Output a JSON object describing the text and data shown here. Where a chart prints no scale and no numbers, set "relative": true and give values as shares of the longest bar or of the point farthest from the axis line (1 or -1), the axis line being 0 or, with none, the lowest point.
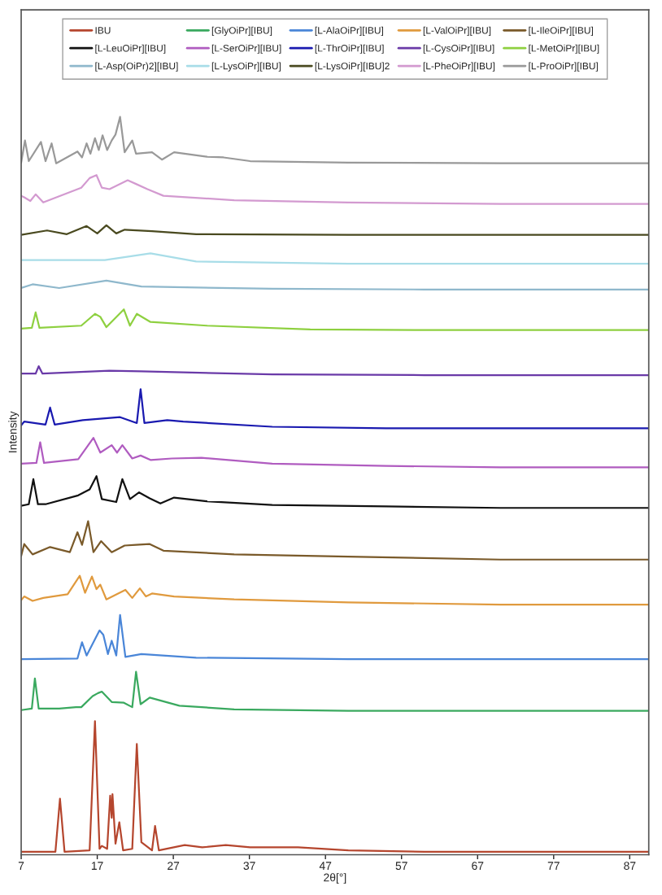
{
  "chart_data": {
    "type": "line",
    "relative": true,
    "xlabel": "2θ[°]",
    "ylabel": "Intensity",
    "xlim": [
      7,
      89.5
    ],
    "xticks": [
      7,
      17,
      27,
      37,
      47,
      57,
      67,
      77,
      87
    ],
    "tick_labels": "x",
    "legend": "top",
    "grid": false,
    "marker": "none",
    "line_style": "solid",
    "series": [
      {
        "name": "IBU",
        "color": "#b5462e",
        "x": [
          7,
          11.5,
          12.1,
          12.7,
          16.0,
          16.7,
          17.3,
          17.6,
          18.3,
          18.7,
          18.9,
          19.0,
          19.4,
          19.9,
          20.4,
          21.6,
          22.2,
          22.8,
          24.2,
          24.6,
          25.1,
          28.5,
          30.8,
          33.9,
          37.1,
          43.4,
          50,
          60,
          70,
          80,
          89.5
        ],
        "values": [
          0.004,
          0.004,
          0.076,
          0.004,
          0.006,
          0.181,
          0.008,
          0.012,
          0.008,
          0.08,
          0.05,
          0.082,
          0.015,
          0.044,
          0.006,
          0.008,
          0.15,
          0.017,
          0.006,
          0.039,
          0.006,
          0.013,
          0.01,
          0.013,
          0.01,
          0.01,
          0.006,
          0.004,
          0.004,
          0.004,
          0.004
        ]
      },
      {
        "name": "[GlyOiPr][IBU]",
        "color": "#3aa95f",
        "x": [
          7,
          8.4,
          8.8,
          9.3,
          12.0,
          14.2,
          14.9,
          16.4,
          17.1,
          17.6,
          18.9,
          20.5,
          21.6,
          22.1,
          22.7,
          23.9,
          27.8,
          35,
          50,
          70,
          89.5
        ],
        "values": [
          0.196,
          0.198,
          0.239,
          0.198,
          0.198,
          0.2,
          0.2,
          0.215,
          0.219,
          0.221,
          0.207,
          0.206,
          0.2,
          0.248,
          0.204,
          0.213,
          0.202,
          0.197,
          0.195,
          0.195,
          0.195
        ]
      },
      {
        "name": "[L-AlaOiPr][IBU]",
        "color": "#4a86d8",
        "x": [
          7,
          14.4,
          15.0,
          15.6,
          17.3,
          17.8,
          18.4,
          18.9,
          19.5,
          20.0,
          20.7,
          22.8,
          30,
          50,
          70,
          89.5
        ],
        "values": [
          0.265,
          0.266,
          0.288,
          0.27,
          0.304,
          0.298,
          0.272,
          0.29,
          0.27,
          0.325,
          0.268,
          0.272,
          0.267,
          0.265,
          0.265,
          0.265
        ]
      },
      {
        "name": "[L-ValOiPr][IBU]",
        "color": "#e09a3e",
        "x": [
          7,
          7.4,
          8.5,
          9.9,
          13.1,
          14.7,
          15.4,
          16.3,
          16.9,
          17.4,
          18.2,
          20.7,
          21.6,
          22.6,
          23.4,
          24.2,
          27.1,
          35,
          50,
          70,
          89.5
        ],
        "values": [
          0.345,
          0.35,
          0.344,
          0.348,
          0.353,
          0.378,
          0.355,
          0.377,
          0.36,
          0.366,
          0.346,
          0.359,
          0.348,
          0.361,
          0.35,
          0.354,
          0.35,
          0.346,
          0.342,
          0.339,
          0.339
        ]
      },
      {
        "name": "[L-IleOiPr][IBU]",
        "color": "#7a5a2a",
        "x": [
          7,
          7.4,
          8.5,
          10.8,
          13.4,
          14.4,
          15.0,
          15.8,
          16.5,
          17.5,
          18.9,
          20.6,
          22.1,
          23.9,
          25.7,
          35,
          50,
          70,
          89.5
        ],
        "values": [
          0.405,
          0.421,
          0.407,
          0.417,
          0.41,
          0.437,
          0.42,
          0.452,
          0.41,
          0.425,
          0.41,
          0.419,
          0.42,
          0.421,
          0.412,
          0.407,
          0.404,
          0.4,
          0.4
        ]
      },
      {
        "name": "[L-LeuOiPr][IBU]",
        "color": "#111111",
        "x": [
          7,
          8.0,
          8.6,
          9.2,
          10.2,
          14.5,
          16.0,
          16.9,
          17.6,
          19.5,
          20.3,
          21.3,
          22.5,
          23.9,
          25.3,
          27.1,
          31.4,
          40,
          55,
          70,
          89.5
        ],
        "values": [
          0.473,
          0.475,
          0.509,
          0.475,
          0.475,
          0.487,
          0.495,
          0.513,
          0.482,
          0.478,
          0.509,
          0.482,
          0.491,
          0.483,
          0.476,
          0.484,
          0.479,
          0.474,
          0.472,
          0.47,
          0.47
        ]
      },
      {
        "name": "[L-SerOiPr][IBU]",
        "color": "#b05cc0",
        "x": [
          7,
          9.0,
          9.5,
          10.0,
          14.5,
          16.5,
          17.4,
          18.9,
          19.6,
          20.3,
          21.6,
          22.7,
          24.0,
          26.8,
          30.7,
          40,
          55,
          70,
          89.5
        ],
        "values": [
          0.53,
          0.531,
          0.559,
          0.531,
          0.536,
          0.565,
          0.545,
          0.555,
          0.545,
          0.555,
          0.537,
          0.541,
          0.535,
          0.537,
          0.538,
          0.53,
          0.527,
          0.525,
          0.525
        ]
      },
      {
        "name": "[L-ThrOiPr][IBU]",
        "color": "#1a1ab0",
        "x": [
          7,
          7.4,
          10.2,
          10.8,
          11.4,
          15.1,
          17.4,
          20.0,
          22.2,
          22.7,
          23.2,
          26.2,
          28.3,
          40,
          55,
          70,
          89.5
        ],
        "values": [
          0.582,
          0.587,
          0.583,
          0.606,
          0.583,
          0.589,
          0.591,
          0.593,
          0.585,
          0.631,
          0.585,
          0.589,
          0.587,
          0.58,
          0.578,
          0.578,
          0.578
        ]
      },
      {
        "name": "[L-CysOiPr][IBU]",
        "color": "#6a3aa8",
        "x": [
          7,
          8.9,
          9.3,
          9.8,
          18.6,
          22.8,
          40,
          60,
          89.5
        ],
        "values": [
          0.652,
          0.652,
          0.662,
          0.652,
          0.656,
          0.655,
          0.651,
          0.65,
          0.65
        ]
      },
      {
        "name": "[L-MetOiPr][IBU]",
        "color": "#8ed040",
        "x": [
          7,
          8.4,
          8.9,
          9.4,
          14.9,
          16.7,
          17.4,
          18.2,
          20.5,
          21.3,
          22.2,
          24.0,
          31.4,
          45,
          60,
          89.5
        ],
        "values": [
          0.713,
          0.714,
          0.735,
          0.714,
          0.717,
          0.733,
          0.729,
          0.715,
          0.739,
          0.717,
          0.733,
          0.722,
          0.717,
          0.712,
          0.711,
          0.711
        ]
      },
      {
        "name": "[L-Asp(OiPr)2][IBU]",
        "color": "#8fb8cc",
        "x": [
          7,
          8.5,
          12,
          18.2,
          22.8,
          40,
          60,
          89.5
        ],
        "values": [
          0.768,
          0.773,
          0.768,
          0.778,
          0.77,
          0.767,
          0.766,
          0.766
        ]
      },
      {
        "name": "[L-LysOiPr][IBU]",
        "color": "#a8dde8",
        "x": [
          7,
          18,
          24.0,
          30,
          50,
          89.5
        ],
        "values": [
          0.806,
          0.806,
          0.815,
          0.804,
          0.801,
          0.801
        ]
      },
      {
        "name": "[L-LysOiPr][IBU]2",
        "color": "#4a4a20",
        "x": [
          7,
          10.4,
          13,
          15.6,
          17,
          18.2,
          19.5,
          20.6,
          24.2,
          30,
          50,
          89.5
        ],
        "values": [
          0.84,
          0.846,
          0.841,
          0.852,
          0.842,
          0.853,
          0.842,
          0.847,
          0.845,
          0.841,
          0.84,
          0.84
        ]
      },
      {
        "name": "[L-PheOiPr][IBU]",
        "color": "#d39ad0",
        "x": [
          7,
          7.4,
          8.2,
          8.9,
          9.9,
          14.9,
          16.0,
          16.9,
          17.6,
          18.6,
          21.0,
          22.1,
          23.6,
          25.7,
          35,
          50,
          70,
          89.5
        ],
        "values": [
          0.893,
          0.891,
          0.886,
          0.895,
          0.884,
          0.904,
          0.917,
          0.921,
          0.904,
          0.902,
          0.914,
          0.909,
          0.902,
          0.893,
          0.887,
          0.884,
          0.882,
          0.882
        ]
      },
      {
        "name": "[L-ProOiPr][IBU]",
        "color": "#999999",
        "x": [
          7,
          7.5,
          8.0,
          9.6,
          10.2,
          11.0,
          11.6,
          14.4,
          15.0,
          15.6,
          16.1,
          16.7,
          17.2,
          17.7,
          18.3,
          18.9,
          19.4,
          20.0,
          20.6,
          21.6,
          22.1,
          24.2,
          25.5,
          27.1,
          31.4,
          33.6,
          37.1,
          50,
          70,
          89.5
        ],
        "values": [
          0.938,
          0.968,
          0.94,
          0.966,
          0.94,
          0.964,
          0.937,
          0.953,
          0.945,
          0.964,
          0.95,
          0.971,
          0.955,
          0.975,
          0.955,
          0.968,
          0.976,
          1.0,
          0.952,
          0.968,
          0.95,
          0.952,
          0.942,
          0.952,
          0.946,
          0.945,
          0.94,
          0.938,
          0.937,
          0.937
        ]
      }
    ]
  }
}
